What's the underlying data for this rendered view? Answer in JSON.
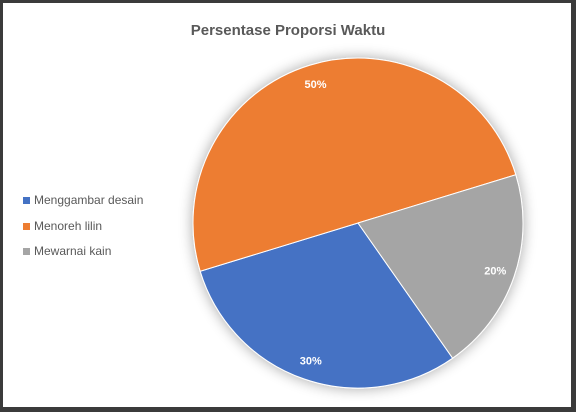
{
  "chart_data": {
    "type": "pie",
    "title": "Persentase Proporsi Waktu",
    "categories": [
      "Menggambar desain",
      "Menoreh lilin",
      "Mewarnai kain"
    ],
    "values": [
      30,
      50,
      20
    ],
    "data_labels": [
      "30%",
      "50%",
      "20%"
    ],
    "colors": [
      "#4472c4",
      "#ed7d31",
      "#a5a5a5"
    ],
    "legend_position": "left"
  }
}
